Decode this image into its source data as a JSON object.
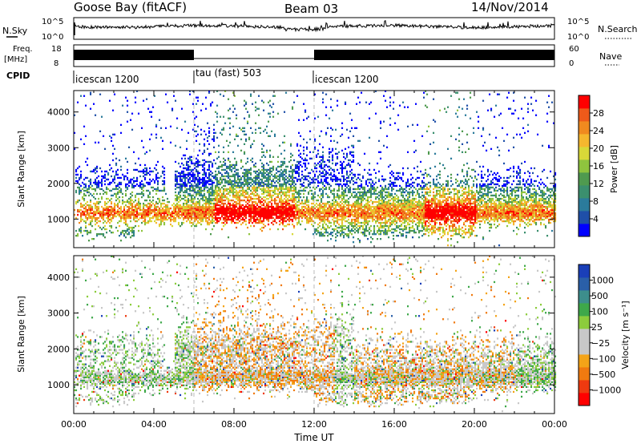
{
  "header": {
    "station": "Goose Bay (fitACF)",
    "beam": "Beam 03",
    "date": "14/Nov/2014"
  },
  "strips": {
    "nsky_label": "N.Sky",
    "nsearch_label": "N.Search",
    "noise_ticks_left": [
      "10^5",
      "10^0"
    ],
    "noise_ticks_right": [
      "10^5",
      "10^0"
    ],
    "freq_label_top": "Freq.",
    "freq_label_unit": "[MHz]",
    "freq_ticks": [
      "18",
      "8"
    ],
    "nave_label": "Nave",
    "nave_ticks": [
      "60",
      "0"
    ],
    "cpid_label": "CPID",
    "cpid_segments": [
      {
        "label": "icescan 1200",
        "start": 0,
        "end": 6
      },
      {
        "label": "tau (fast) 503",
        "start": 6,
        "end": 12
      },
      {
        "label": "icescan 1200",
        "start": 12,
        "end": 24
      }
    ]
  },
  "chart_data": [
    {
      "type": "heatmap",
      "xlabel": "Time UT",
      "ylabel": "Slant Range [km]",
      "xlim": [
        0,
        24
      ],
      "ylim": [
        200,
        4600
      ],
      "xticks": [
        "00:00",
        "04:00",
        "08:00",
        "12:00",
        "16:00",
        "20:00",
        "00:00"
      ],
      "yticks": [
        "1000",
        "2000",
        "3000",
        "4000"
      ],
      "colorbar": {
        "label": "Power [dB]",
        "ticks": [
          "28",
          "24",
          "20",
          "16",
          "12",
          "8",
          "4"
        ],
        "colors": [
          "#0000ff",
          "#1f4fa8",
          "#2b7b9b",
          "#3b8f6e",
          "#4f9a4f",
          "#8fc43e",
          "#d8d838",
          "#f5b72e",
          "#f08a1f",
          "#ee5a1a",
          "#ff0000"
        ]
      }
    },
    {
      "type": "heatmap",
      "xlabel": "Time UT",
      "ylabel": "Slant Range [km]",
      "xlim": [
        0,
        24
      ],
      "ylim": [
        200,
        4600
      ],
      "xticks": [
        "00:00",
        "04:00",
        "08:00",
        "12:00",
        "16:00",
        "20:00",
        "00:00"
      ],
      "yticks": [
        "1000",
        "2000",
        "3000",
        "4000"
      ],
      "colorbar": {
        "label": "Velocity [m s⁻¹]",
        "ticks": [
          "1000",
          "500",
          "100",
          "25",
          "−25",
          "−100",
          "−500",
          "−1000"
        ],
        "colors": [
          "#ff0000",
          "#ee3a10",
          "#f07a10",
          "#f4a418",
          "#c8c8c8",
          "#c8c8c8",
          "#8ccc3c",
          "#3ea84a",
          "#3d8e8c",
          "#2a5fa8",
          "#1a3fb8"
        ]
      }
    }
  ]
}
